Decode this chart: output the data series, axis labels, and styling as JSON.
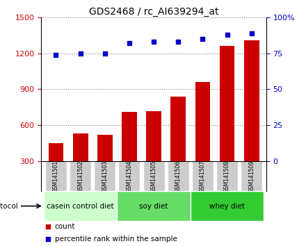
{
  "title": "GDS2468 / rc_AI639294_at",
  "samples": [
    "GSM141501",
    "GSM141502",
    "GSM141503",
    "GSM141504",
    "GSM141505",
    "GSM141506",
    "GSM141507",
    "GSM141508",
    "GSM141509"
  ],
  "counts": [
    450,
    530,
    520,
    710,
    715,
    840,
    960,
    1260,
    1310
  ],
  "percentile_ranks": [
    74,
    75,
    75,
    82,
    83,
    83,
    85,
    88,
    89
  ],
  "bar_color": "#cc0000",
  "dot_color": "#0000cc",
  "ylim_left": [
    300,
    1500
  ],
  "ylim_right": [
    0,
    100
  ],
  "yticks_left": [
    300,
    600,
    900,
    1200,
    1500
  ],
  "yticks_right": [
    0,
    25,
    50,
    75,
    100
  ],
  "yticklabels_right": [
    "0",
    "25",
    "50",
    "75",
    "100%"
  ],
  "groups": [
    {
      "label": "casein control diet",
      "start": 0,
      "end": 3,
      "color": "#ccffcc"
    },
    {
      "label": "soy diet",
      "start": 3,
      "end": 6,
      "color": "#66dd66"
    },
    {
      "label": "whey diet",
      "start": 6,
      "end": 9,
      "color": "#33cc33"
    }
  ],
  "protocol_label": "protocol",
  "legend_count_label": "count",
  "legend_pct_label": "percentile rank within the sample",
  "tick_label_bg": "#cccccc",
  "grid_color": "#000000",
  "grid_linestyle": ":",
  "grid_linewidth": 0.8
}
